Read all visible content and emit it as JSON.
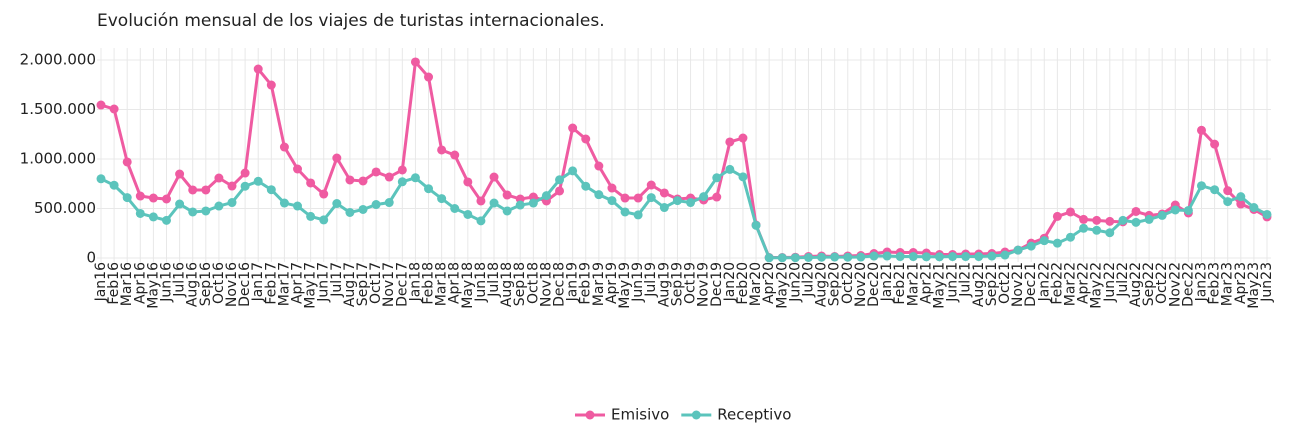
{
  "chart_data": {
    "type": "line",
    "title": "Evolución mensual de los viajes de turistas internacionales.",
    "categories": [
      "Jan16",
      "Feb16",
      "Mar16",
      "Apr16",
      "May16",
      "Jun16",
      "Jul16",
      "Aug16",
      "Sep16",
      "Oct16",
      "Nov16",
      "Dec16",
      "Jan17",
      "Feb17",
      "Mar17",
      "Apr17",
      "May17",
      "Jun17",
      "Jul17",
      "Aug17",
      "Sep17",
      "Oct17",
      "Nov17",
      "Dec17",
      "Jan18",
      "Feb18",
      "Mar18",
      "Apr18",
      "May18",
      "Jun18",
      "Jul18",
      "Aug18",
      "Sep18",
      "Oct18",
      "Nov18",
      "Dec18",
      "Jan19",
      "Feb19",
      "Mar19",
      "Apr19",
      "May19",
      "Jun19",
      "Jul19",
      "Aug19",
      "Sep19",
      "Oct19",
      "Nov19",
      "Dec19",
      "Jan20",
      "Feb20",
      "Mar20",
      "Apr20",
      "May20",
      "Jun20",
      "Jul20",
      "Aug20",
      "Sep20",
      "Oct20",
      "Nov20",
      "Dec20",
      "Jan21",
      "Feb21",
      "Mar21",
      "Apr21",
      "May21",
      "Jun21",
      "Jul21",
      "Aug21",
      "Sep21",
      "Oct21",
      "Nov21",
      "Dec21",
      "Jan22",
      "Feb22",
      "Mar22",
      "Apr22",
      "May22",
      "Jun22",
      "Jul22",
      "Aug22",
      "Sep22",
      "Oct22",
      "Nov22",
      "Dec22",
      "Jan23",
      "Feb23",
      "Mar23",
      "Apr23",
      "May23",
      "Jun23"
    ],
    "series": [
      {
        "name": "Emisivo",
        "color": "#ef5ba1",
        "values": [
          1545000,
          1505000,
          970000,
          626000,
          606000,
          596000,
          848000,
          687000,
          687000,
          808000,
          727000,
          858000,
          1909000,
          1747000,
          1121000,
          899000,
          758000,
          646000,
          1010000,
          788000,
          778000,
          869000,
          818000,
          889000,
          1980000,
          1828000,
          1091000,
          1040000,
          768000,
          576000,
          818000,
          636000,
          596000,
          616000,
          576000,
          677000,
          1313000,
          1202000,
          929000,
          707000,
          606000,
          606000,
          737000,
          657000,
          596000,
          606000,
          586000,
          616000,
          1172000,
          1212000,
          333000,
          5000,
          5000,
          8000,
          15000,
          20000,
          15000,
          20000,
          25000,
          45000,
          60000,
          55000,
          55000,
          50000,
          35000,
          35000,
          40000,
          40000,
          45000,
          60000,
          80000,
          150000,
          200000,
          420000,
          465000,
          390000,
          380000,
          370000,
          365000,
          470000,
          430000,
          445000,
          535000,
          455000,
          1290000,
          1150000,
          680000,
          545000,
          490000,
          415000
        ]
      },
      {
        "name": "Receptivo",
        "color": "#5bc4bc",
        "values": [
          800000,
          735000,
          610000,
          450000,
          415000,
          380000,
          545000,
          465000,
          475000,
          525000,
          560000,
          725000,
          775000,
          690000,
          555000,
          525000,
          420000,
          385000,
          550000,
          460000,
          490000,
          540000,
          560000,
          770000,
          810000,
          700000,
          600000,
          500000,
          440000,
          375000,
          555000,
          475000,
          535000,
          555000,
          630000,
          790000,
          880000,
          725000,
          640000,
          580000,
          465000,
          435000,
          610000,
          510000,
          580000,
          560000,
          620000,
          810000,
          895000,
          820000,
          330000,
          2000,
          2000,
          3000,
          5000,
          8000,
          10000,
          8000,
          10000,
          20000,
          20000,
          15000,
          15000,
          12000,
          12000,
          15000,
          15000,
          15000,
          20000,
          30000,
          80000,
          120000,
          175000,
          150000,
          210000,
          300000,
          280000,
          255000,
          380000,
          360000,
          390000,
          430000,
          485000,
          480000,
          730000,
          690000,
          570000,
          620000,
          510000,
          440000
        ]
      }
    ],
    "ylim": [
      0,
      2000000
    ],
    "yticks": [
      0,
      {
        "value": 500000,
        "label": "500.000"
      },
      {
        "value": 1000000,
        "label": "1.000.000"
      },
      {
        "value": 1500000,
        "label": "1.500.000"
      },
      {
        "value": 2000000,
        "label": "2.000.000"
      }
    ],
    "grid": true,
    "legend": "bottom"
  }
}
